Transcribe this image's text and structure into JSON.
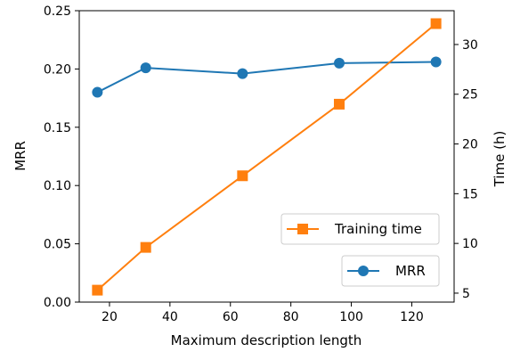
{
  "chart_data": {
    "type": "line",
    "xlabel": "Maximum description length",
    "ylabel": "MRR",
    "y2label": "Time (h)",
    "xlim": [
      10,
      134
    ],
    "ylim": [
      0.0,
      0.25
    ],
    "y2lim": [
      4.1,
      33.4
    ],
    "xticks": [
      "20",
      "40",
      "60",
      "80",
      "100",
      "120"
    ],
    "yticks": [
      "0.00",
      "0.05",
      "0.10",
      "0.15",
      "0.20",
      "0.25"
    ],
    "y2ticks": [
      "5",
      "10",
      "15",
      "20",
      "25",
      "30"
    ],
    "grid": false,
    "legend_placement": "lower-right",
    "x": [
      16,
      32,
      64,
      96,
      128
    ],
    "series": [
      {
        "name": "MRR",
        "axis": "left",
        "marker": "circle",
        "color": "#1f77b4",
        "values": [
          0.18,
          0.201,
          0.196,
          0.205,
          0.206
        ]
      },
      {
        "name": "Training time",
        "axis": "right",
        "marker": "square",
        "color": "#ff7f0e",
        "values": [
          5.3,
          9.6,
          16.8,
          24.0,
          32.1
        ]
      }
    ]
  }
}
